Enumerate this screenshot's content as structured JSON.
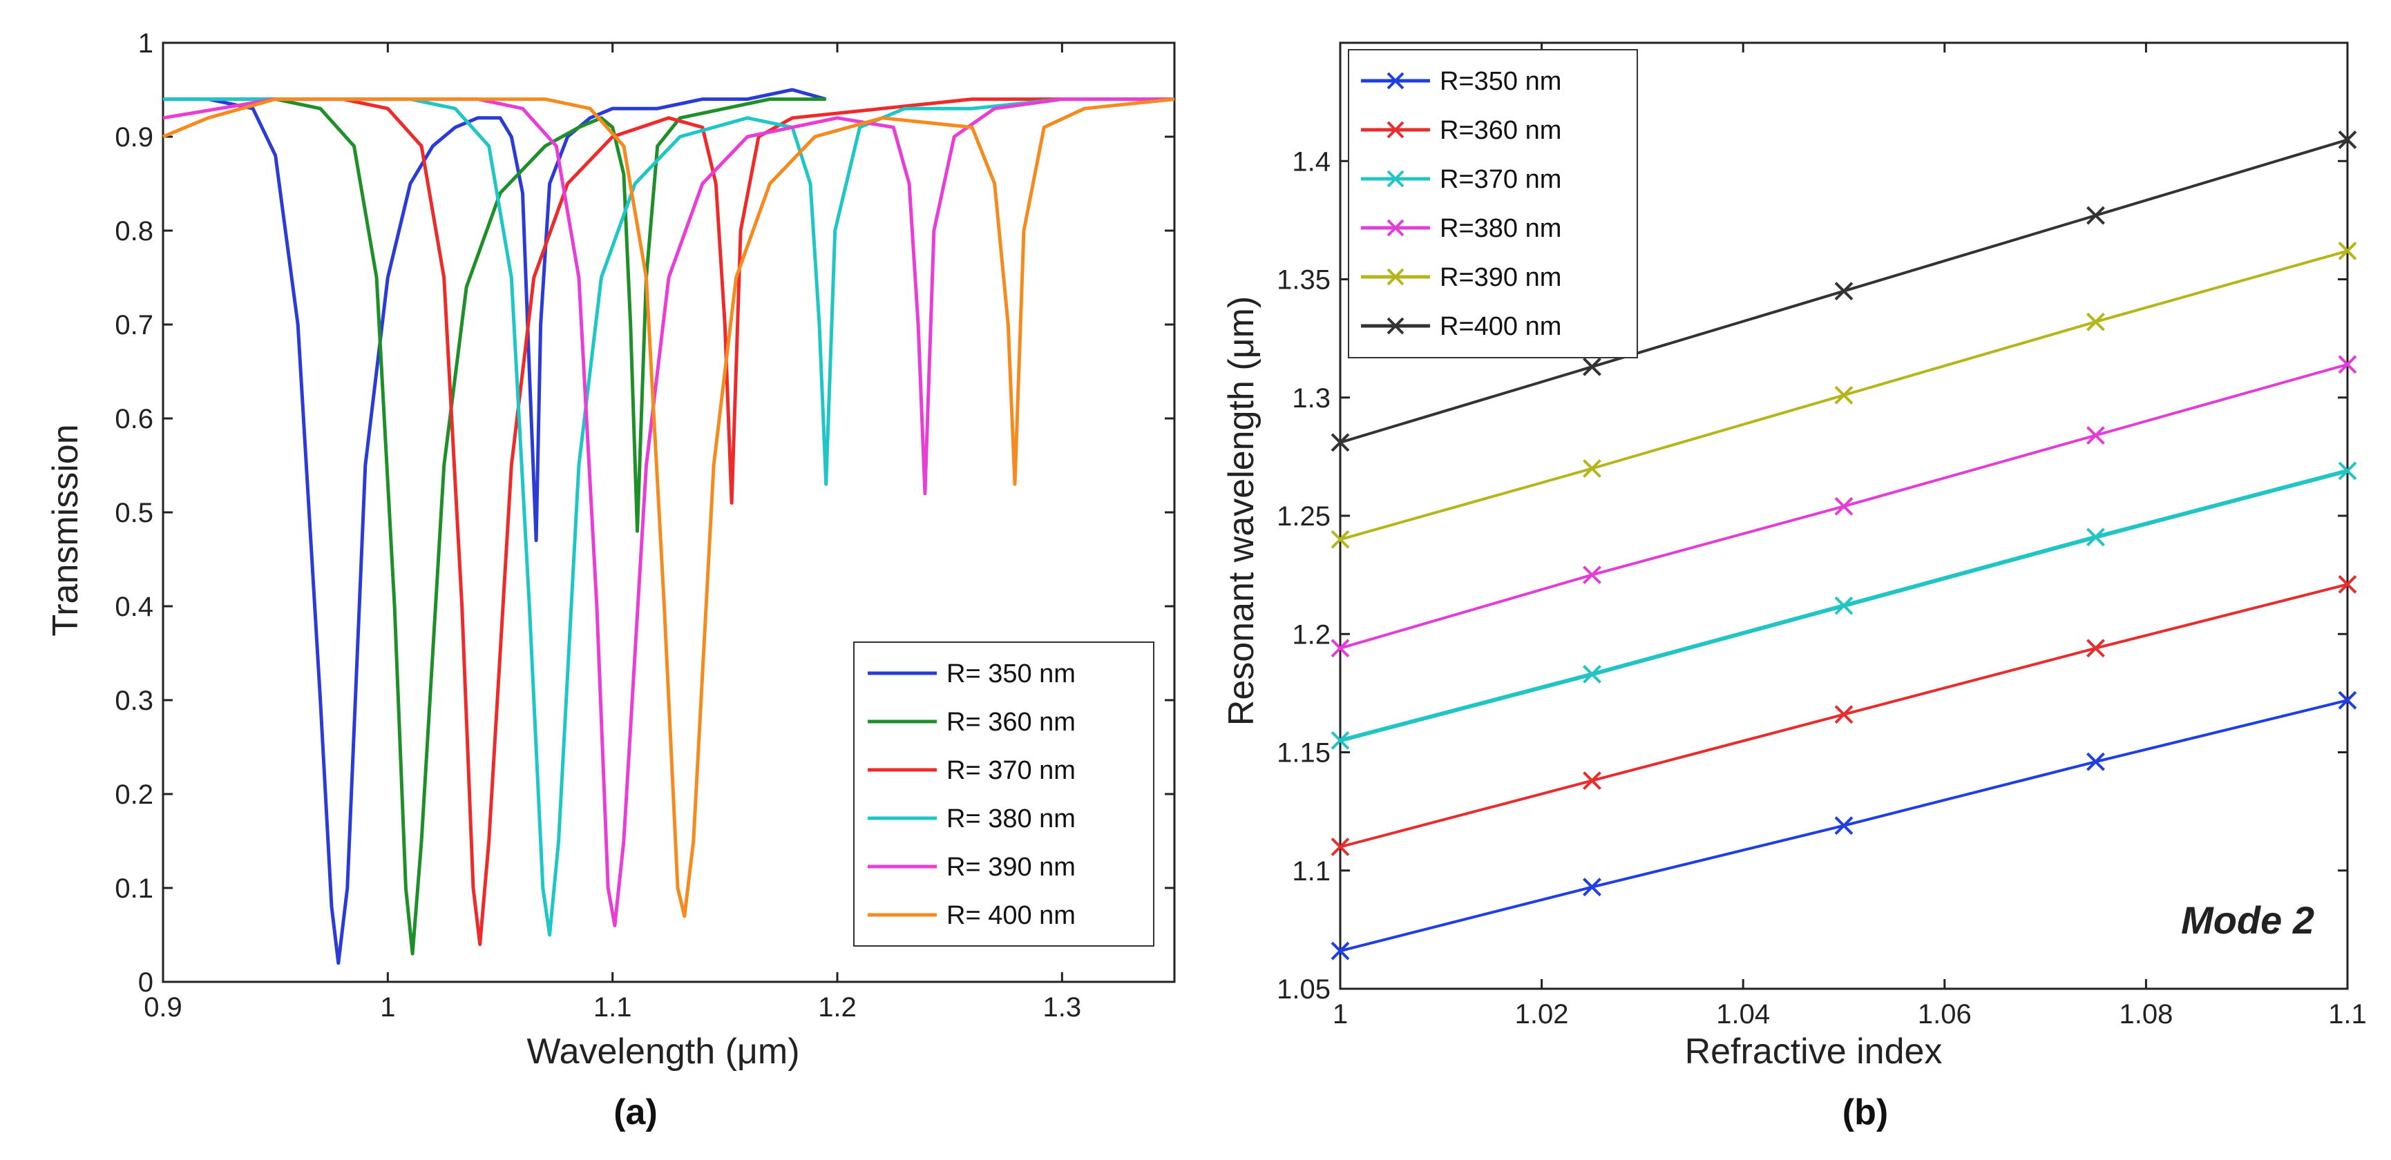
{
  "chart_data": [
    {
      "type": "line",
      "caption": "(a)",
      "xlabel": "Wavelength (μm)",
      "ylabel": "Transmission",
      "xlim": [
        0.9,
        1.35
      ],
      "ylim": [
        0,
        1
      ],
      "xticks": [
        0.9,
        1,
        1.1,
        1.2,
        1.3
      ],
      "xtick_labels": [
        "0.9",
        "1",
        "1.1",
        "1.2",
        "1.3"
      ],
      "yticks": [
        0,
        0.1,
        0.2,
        0.3,
        0.4,
        0.5,
        0.6,
        0.7,
        0.8,
        0.9,
        1
      ],
      "ytick_labels": [
        "0",
        "0.1",
        "0.2",
        "0.3",
        "0.4",
        "0.5",
        "0.6",
        "0.7",
        "0.8",
        "0.9",
        "1"
      ],
      "legend_position": "lower-right",
      "series": [
        {
          "name": "R= 350 nm",
          "color": "#2b3bd6",
          "x": [
            0.9,
            0.92,
            0.94,
            0.95,
            0.96,
            0.97,
            0.975,
            0.978,
            0.982,
            0.99,
            1.0,
            1.01,
            1.02,
            1.03,
            1.04,
            1.05,
            1.055,
            1.06,
            1.063,
            1.066,
            1.068,
            1.072,
            1.08,
            1.09,
            1.1,
            1.12,
            1.14,
            1.16,
            1.18,
            1.195
          ],
          "y": [
            0.94,
            0.94,
            0.93,
            0.88,
            0.7,
            0.3,
            0.08,
            0.02,
            0.1,
            0.55,
            0.75,
            0.85,
            0.89,
            0.91,
            0.92,
            0.92,
            0.9,
            0.84,
            0.65,
            0.47,
            0.7,
            0.85,
            0.9,
            0.92,
            0.93,
            0.93,
            0.94,
            0.94,
            0.95,
            0.94
          ]
        },
        {
          "name": "R= 360 nm",
          "color": "#1f8f2a",
          "x": [
            0.9,
            0.95,
            0.97,
            0.985,
            0.995,
            1.003,
            1.008,
            1.011,
            1.015,
            1.025,
            1.035,
            1.05,
            1.07,
            1.085,
            1.095,
            1.1,
            1.105,
            1.108,
            1.111,
            1.115,
            1.12,
            1.13,
            1.15,
            1.17,
            1.195
          ],
          "y": [
            0.94,
            0.94,
            0.93,
            0.89,
            0.75,
            0.4,
            0.1,
            0.03,
            0.15,
            0.55,
            0.74,
            0.84,
            0.89,
            0.91,
            0.92,
            0.91,
            0.86,
            0.7,
            0.48,
            0.75,
            0.89,
            0.92,
            0.93,
            0.94,
            0.94
          ]
        },
        {
          "name": "R= 370 nm",
          "color": "#ee2b2b",
          "x": [
            0.9,
            0.98,
            1.0,
            1.015,
            1.025,
            1.033,
            1.038,
            1.041,
            1.045,
            1.055,
            1.065,
            1.08,
            1.1,
            1.125,
            1.14,
            1.146,
            1.15,
            1.153,
            1.157,
            1.165,
            1.18,
            1.22,
            1.26,
            1.3,
            1.35
          ],
          "y": [
            0.94,
            0.94,
            0.93,
            0.89,
            0.75,
            0.4,
            0.1,
            0.04,
            0.15,
            0.55,
            0.75,
            0.85,
            0.9,
            0.92,
            0.91,
            0.85,
            0.7,
            0.51,
            0.8,
            0.9,
            0.92,
            0.93,
            0.94,
            0.94,
            0.94
          ]
        },
        {
          "name": "R= 380 nm",
          "color": "#1ec6c6",
          "x": [
            0.9,
            1.01,
            1.03,
            1.045,
            1.055,
            1.063,
            1.069,
            1.072,
            1.076,
            1.085,
            1.095,
            1.11,
            1.13,
            1.16,
            1.18,
            1.188,
            1.192,
            1.195,
            1.199,
            1.21,
            1.23,
            1.26,
            1.3,
            1.35
          ],
          "y": [
            0.94,
            0.94,
            0.93,
            0.89,
            0.75,
            0.4,
            0.1,
            0.05,
            0.15,
            0.55,
            0.75,
            0.85,
            0.9,
            0.92,
            0.91,
            0.85,
            0.7,
            0.53,
            0.8,
            0.91,
            0.93,
            0.93,
            0.94,
            0.94
          ]
        },
        {
          "name": "R= 390 nm",
          "color": "#e83ed6",
          "x": [
            0.9,
            0.95,
            1.04,
            1.06,
            1.075,
            1.085,
            1.093,
            1.098,
            1.101,
            1.105,
            1.115,
            1.125,
            1.14,
            1.16,
            1.2,
            1.225,
            1.232,
            1.236,
            1.239,
            1.243,
            1.252,
            1.27,
            1.3,
            1.35
          ],
          "y": [
            0.92,
            0.94,
            0.94,
            0.93,
            0.89,
            0.75,
            0.4,
            0.1,
            0.06,
            0.15,
            0.55,
            0.75,
            0.85,
            0.9,
            0.92,
            0.91,
            0.85,
            0.7,
            0.52,
            0.8,
            0.9,
            0.93,
            0.94,
            0.94
          ]
        },
        {
          "name": "R= 400 nm",
          "color": "#f58a1f",
          "x": [
            0.9,
            0.92,
            0.95,
            1.0,
            1.07,
            1.09,
            1.105,
            1.115,
            1.123,
            1.129,
            1.132,
            1.136,
            1.145,
            1.155,
            1.17,
            1.19,
            1.22,
            1.26,
            1.27,
            1.276,
            1.279,
            1.283,
            1.292,
            1.31,
            1.35
          ],
          "y": [
            0.9,
            0.92,
            0.94,
            0.94,
            0.94,
            0.93,
            0.89,
            0.75,
            0.4,
            0.1,
            0.07,
            0.15,
            0.55,
            0.75,
            0.85,
            0.9,
            0.92,
            0.91,
            0.85,
            0.7,
            0.53,
            0.8,
            0.91,
            0.93,
            0.94
          ]
        }
      ]
    },
    {
      "type": "line",
      "caption": "(b)",
      "annotation": "Mode 2",
      "xlabel": "Refractive index",
      "ylabel": "Resonant wavelength (μm)",
      "xlim": [
        1,
        1.1
      ],
      "ylim": [
        1.05,
        1.45
      ],
      "xticks": [
        1,
        1.02,
        1.04,
        1.06,
        1.08,
        1.1
      ],
      "xtick_labels": [
        "1",
        "1.02",
        "1.04",
        "1.06",
        "1.08",
        "1.1"
      ],
      "yticks": [
        1.05,
        1.1,
        1.15,
        1.2,
        1.25,
        1.3,
        1.35,
        1.4
      ],
      "ytick_labels": [
        "1.05",
        "1.1",
        "1.15",
        "1.2",
        "1.25",
        "1.3",
        "1.35",
        "1.4"
      ],
      "legend_position": "top-left",
      "x": [
        1.0,
        1.025,
        1.05,
        1.075,
        1.1
      ],
      "series": [
        {
          "name": "R=350 nm",
          "color": "#1f3fe0",
          "values": [
            1.066,
            1.093,
            1.119,
            1.146,
            1.172
          ]
        },
        {
          "name": "R=360 nm",
          "color": "#e62e2e",
          "values": [
            1.11,
            1.138,
            1.166,
            1.194,
            1.221
          ]
        },
        {
          "name": "R=370 nm",
          "color": "#22c4c4",
          "values": [
            1.155,
            1.183,
            1.212,
            1.241,
            1.269
          ]
        },
        {
          "name": "R=380 nm",
          "color": "#e23ed6",
          "values": [
            1.194,
            1.225,
            1.254,
            1.284,
            1.314
          ]
        },
        {
          "name": "R=390 nm",
          "color": "#b5b51c",
          "values": [
            1.24,
            1.27,
            1.301,
            1.332,
            1.362
          ]
        },
        {
          "name": "R=400 nm",
          "color": "#333333",
          "values": [
            1.281,
            1.313,
            1.345,
            1.377,
            1.409
          ]
        }
      ]
    }
  ]
}
